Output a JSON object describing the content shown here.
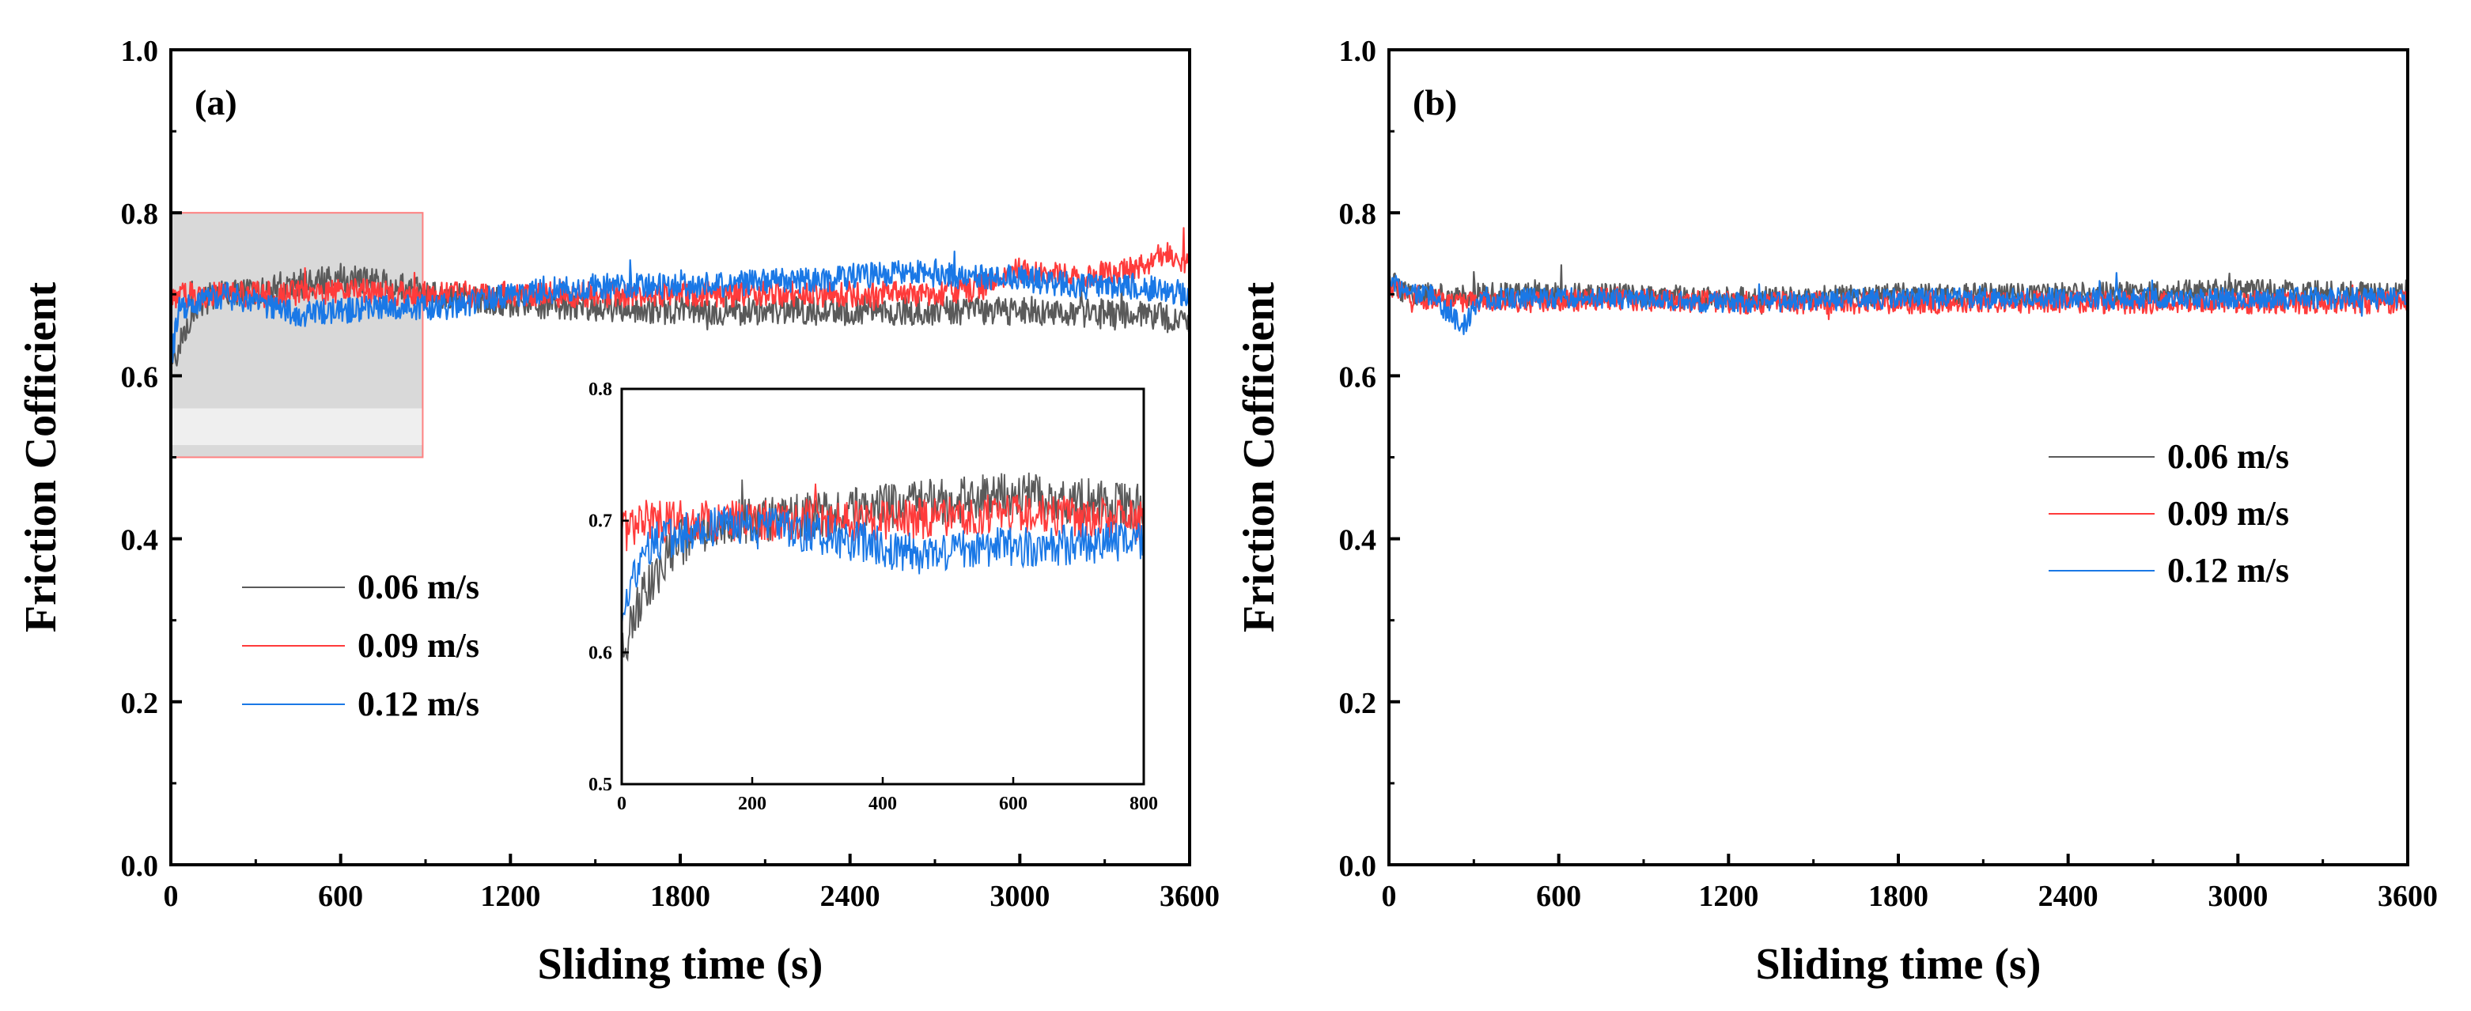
{
  "colors": {
    "s006": "#5a5a5a",
    "s009": "#ff3b3b",
    "s012": "#1a78e6",
    "axes": "#000000",
    "highlight_fill": "#d9d9d9",
    "highlight_edge": "#ff8080"
  },
  "chart_data": [
    {
      "panel_label": "(a)",
      "type": "line",
      "xlabel": "Sliding time (s)",
      "ylabel": "Friction Cofficient",
      "xlim": [
        0,
        3600
      ],
      "ylim": [
        0,
        1.0
      ],
      "x_ticks": [
        "0",
        "600",
        "1200",
        "1800",
        "2400",
        "3000",
        "3600"
      ],
      "y_ticks": [
        "0.0",
        "0.2",
        "0.4",
        "0.6",
        "0.8",
        "1.0"
      ],
      "legend_position": "center-left",
      "highlight_region": {
        "x_range": [
          0,
          890
        ],
        "y_range": [
          0.5,
          0.8
        ]
      },
      "series": [
        {
          "name": "0.06 m/s",
          "color_key": "s006",
          "noise": 0.018,
          "x": [
            0,
            30,
            80,
            150,
            200,
            400,
            600,
            800,
            900,
            1200,
            1500,
            1800,
            2100,
            2400,
            2700,
            3000,
            3300,
            3600
          ],
          "y": [
            0.6,
            0.64,
            0.68,
            0.7,
            0.7,
            0.71,
            0.72,
            0.71,
            0.7,
            0.69,
            0.685,
            0.68,
            0.68,
            0.68,
            0.68,
            0.68,
            0.675,
            0.67
          ]
        },
        {
          "name": "0.09 m/s",
          "color_key": "s009",
          "noise": 0.016,
          "x": [
            0,
            30,
            100,
            200,
            400,
            600,
            800,
            1200,
            1500,
            1800,
            2100,
            2400,
            2700,
            2900,
            3000,
            3200,
            3400,
            3500,
            3600
          ],
          "y": [
            0.69,
            0.7,
            0.7,
            0.7,
            0.7,
            0.705,
            0.7,
            0.7,
            0.7,
            0.7,
            0.7,
            0.7,
            0.7,
            0.71,
            0.73,
            0.72,
            0.73,
            0.75,
            0.74
          ]
        },
        {
          "name": "0.12 m/s",
          "color_key": "s012",
          "noise": 0.016,
          "x": [
            0,
            30,
            100,
            200,
            300,
            450,
            600,
            800,
            1000,
            1200,
            1500,
            1800,
            2100,
            2400,
            2600,
            2800,
            3000,
            3200,
            3400,
            3600
          ],
          "y": [
            0.62,
            0.68,
            0.69,
            0.7,
            0.69,
            0.675,
            0.68,
            0.685,
            0.685,
            0.7,
            0.71,
            0.71,
            0.715,
            0.72,
            0.73,
            0.72,
            0.72,
            0.71,
            0.71,
            0.7
          ]
        }
      ],
      "inset": {
        "xlim": [
          0,
          800
        ],
        "ylim": [
          0.5,
          0.8
        ],
        "x_ticks": [
          "0",
          "200",
          "400",
          "600",
          "800"
        ],
        "y_ticks": [
          "0.5",
          "0.6",
          "0.7",
          "0.8"
        ]
      }
    },
    {
      "panel_label": "(b)",
      "type": "line",
      "xlabel": "Sliding time (s)",
      "ylabel": "Friction Cofficient",
      "xlim": [
        0,
        3600
      ],
      "ylim": [
        0,
        1.0
      ],
      "x_ticks": [
        "0",
        "600",
        "1200",
        "1800",
        "2400",
        "3000",
        "3600"
      ],
      "y_ticks": [
        "0.0",
        "0.2",
        "0.4",
        "0.6",
        "0.8",
        "1.0"
      ],
      "legend_position": "center-right",
      "series": [
        {
          "name": "0.06 m/s",
          "color_key": "s006",
          "noise": 0.014,
          "x": [
            0,
            60,
            200,
            400,
            800,
            1200,
            1800,
            2400,
            3000,
            3600
          ],
          "y": [
            0.72,
            0.7,
            0.7,
            0.7,
            0.7,
            0.695,
            0.7,
            0.7,
            0.705,
            0.7
          ]
        },
        {
          "name": "0.09 m/s",
          "color_key": "s009",
          "noise": 0.014,
          "x": [
            0,
            60,
            200,
            400,
            800,
            1200,
            1800,
            2400,
            3000,
            3600
          ],
          "y": [
            0.71,
            0.7,
            0.69,
            0.69,
            0.695,
            0.69,
            0.69,
            0.69,
            0.69,
            0.69
          ]
        },
        {
          "name": "0.12 m/s",
          "color_key": "s012",
          "noise": 0.013,
          "x": [
            0,
            60,
            150,
            200,
            260,
            320,
            400,
            800,
            1200,
            1800,
            2400,
            3000,
            3600
          ],
          "y": [
            0.72,
            0.7,
            0.7,
            0.68,
            0.66,
            0.69,
            0.695,
            0.695,
            0.69,
            0.695,
            0.695,
            0.695,
            0.695
          ]
        }
      ]
    }
  ]
}
